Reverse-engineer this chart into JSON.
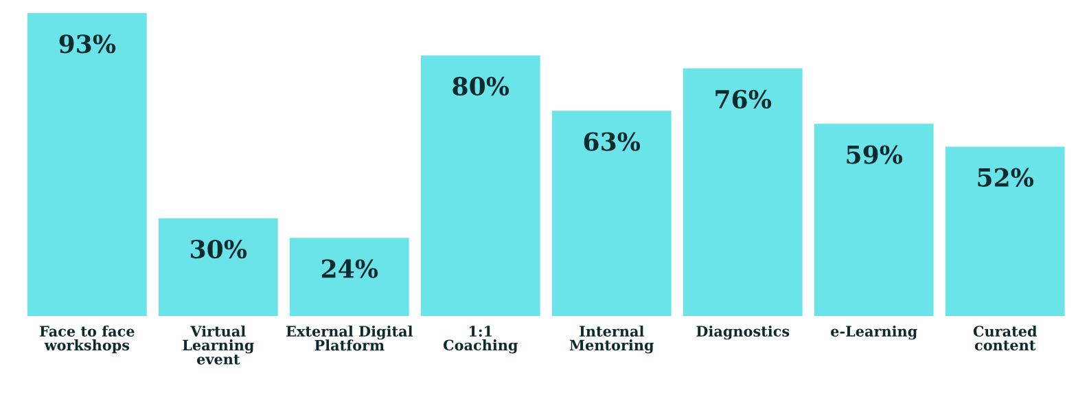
{
  "chart_data": {
    "type": "bar",
    "categories": [
      "Face to face\nworkshops",
      "Virtual\nLearning\nevent",
      "External Digital\nPlatform",
      "1:1\nCoaching",
      "Internal\nMentoring",
      "Diagnostics",
      "e-Learning",
      "Curated\ncontent"
    ],
    "values": [
      93,
      30,
      24,
      80,
      63,
      76,
      59,
      52
    ],
    "value_labels": [
      "93%",
      "30%",
      "24%",
      "80%",
      "63%",
      "76%",
      "59%",
      "52%"
    ],
    "color": "#6ae4e8",
    "grid": false,
    "legend": false
  }
}
